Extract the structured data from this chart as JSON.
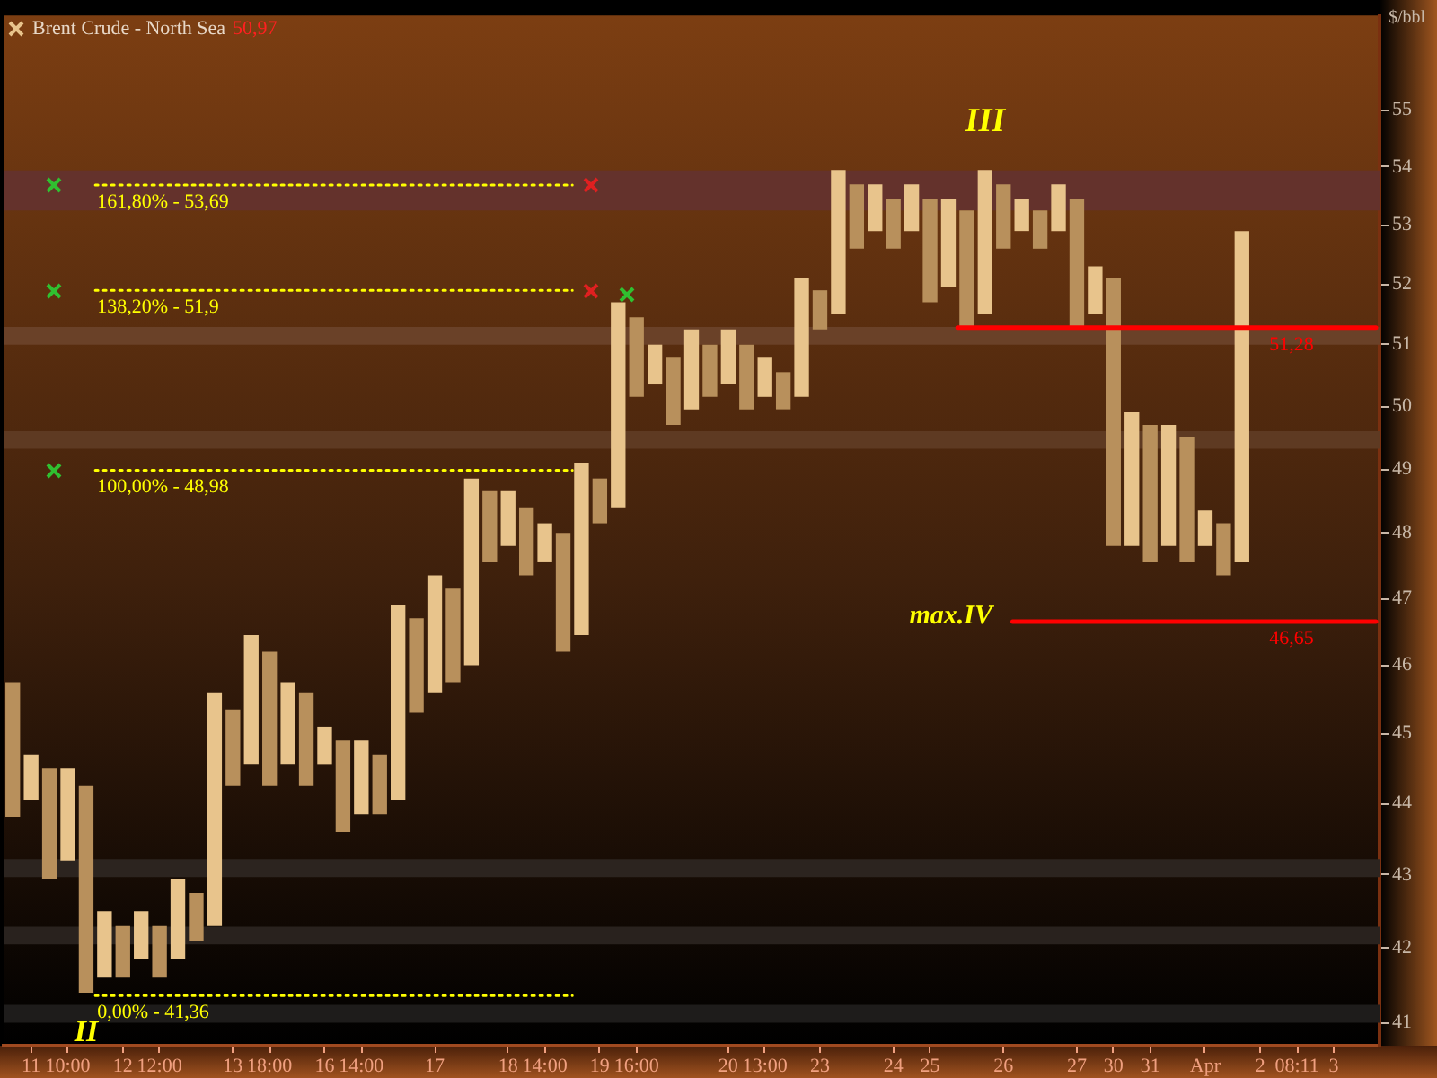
{
  "chart_data": {
    "type": "bar",
    "title": "Brent Crude - North Sea",
    "subtitle": "50,97",
    "ylabel": "$/bbl",
    "categories": [
      null,
      "11",
      null,
      "10:00",
      null,
      null,
      "12",
      null,
      "12:00",
      null,
      null,
      null,
      "13",
      null,
      "18:00",
      null,
      null,
      "16",
      null,
      "14:00",
      null,
      null,
      null,
      "17",
      null,
      null,
      null,
      "18",
      null,
      "14:00",
      null,
      null,
      "19",
      null,
      "16:00",
      null,
      null,
      null,
      null,
      "20",
      null,
      "13:00",
      null,
      null,
      "23",
      null,
      null,
      null,
      "24",
      null,
      "25",
      null,
      null,
      null,
      "26",
      null,
      null,
      null,
      "27",
      null,
      "30",
      null,
      "31",
      null,
      null,
      "Apr",
      null,
      null,
      "2",
      null,
      "08:11",
      null,
      "3",
      null,
      null
    ],
    "base": [
      43.8,
      44.05,
      42.95,
      43.2,
      41.4,
      41.6,
      41.6,
      41.85,
      41.6,
      41.85,
      42.1,
      42.3,
      44.25,
      44.55,
      44.25,
      44.55,
      44.25,
      44.55,
      43.6,
      43.85,
      43.85,
      44.05,
      45.3,
      45.6,
      45.75,
      46.0,
      47.55,
      47.8,
      47.35,
      47.55,
      46.2,
      46.45,
      48.15,
      48.4,
      50.15,
      50.35,
      49.7,
      49.95,
      50.15,
      50.35,
      49.95,
      50.15,
      49.95,
      50.15,
      51.25,
      51.5,
      52.6,
      52.9,
      52.6,
      52.9,
      51.7,
      51.95,
      51.3,
      51.5,
      52.6,
      52.9,
      52.6,
      52.9,
      51.3,
      51.5,
      47.8,
      47.8,
      47.55,
      47.8,
      47.55,
      47.8,
      47.35,
      47.55,
      null,
      null,
      null,
      null,
      null,
      null,
      null
    ],
    "values": [
      1.95,
      0.65,
      1.55,
      1.3,
      2.85,
      0.9,
      0.7,
      0.65,
      0.7,
      1.1,
      0.65,
      3.3,
      1.1,
      1.9,
      1.95,
      1.2,
      1.35,
      0.55,
      1.3,
      1.05,
      0.85,
      2.85,
      1.4,
      1.75,
      1.4,
      2.85,
      1.1,
      0.85,
      1.05,
      0.6,
      1.8,
      2.65,
      0.7,
      3.3,
      1.3,
      0.65,
      1.1,
      1.3,
      0.85,
      0.9,
      1.05,
      0.65,
      0.6,
      1.95,
      0.65,
      2.45,
      1.1,
      0.8,
      0.85,
      0.8,
      1.75,
      1.5,
      1.95,
      2.45,
      1.1,
      0.55,
      0.65,
      0.8,
      2.15,
      0.8,
      4.3,
      2.1,
      2.15,
      1.9,
      1.95,
      0.55,
      0.8,
      5.35,
      null,
      null,
      null,
      null,
      null,
      null,
      null
    ],
    "colors": [
      "#b8905c",
      "#e8c48c",
      "#b8905c",
      "#e8c48c",
      "#b8905c",
      "#e8c48c",
      "#b8905c",
      "#e8c48c",
      "#b8905c",
      "#e8c48c",
      "#b8905c",
      "#e8c48c",
      "#b8905c",
      "#e8c48c",
      "#b8905c",
      "#e8c48c",
      "#b8905c",
      "#e8c48c",
      "#b8905c",
      "#e8c48c",
      "#b8905c",
      "#e8c48c",
      "#b8905c",
      "#e8c48c",
      "#b8905c",
      "#e8c48c",
      "#b8905c",
      "#e8c48c",
      "#b8905c",
      "#e8c48c",
      "#b8905c",
      "#e8c48c",
      "#b8905c",
      "#e8c48c",
      "#b8905c",
      "#e8c48c",
      "#b8905c",
      "#e8c48c",
      "#b8905c",
      "#e8c48c",
      "#b8905c",
      "#e8c48c",
      "#b8905c",
      "#e8c48c",
      "#b8905c",
      "#e8c48c",
      "#b8905c",
      "#e8c48c",
      "#b8905c",
      "#e8c48c",
      "#b8905c",
      "#e8c48c",
      "#b8905c",
      "#e8c48c",
      "#b8905c",
      "#e8c48c",
      "#b8905c",
      "#e8c48c",
      "#b8905c",
      "#e8c48c",
      "#b8905c",
      "#e8c48c",
      "#b8905c",
      "#e8c48c",
      "#b8905c",
      "#e8c48c",
      "#b8905c",
      "#e8c48c",
      "#b8905c",
      "#e8c48c",
      "#b8905c",
      "#e8c48c",
      "#b8905c",
      "#e8c48c",
      "#b8905c"
    ],
    "log": true,
    "ylim": [
      40.7,
      56.7
    ],
    "yticks": [
      41,
      42,
      43,
      44,
      45,
      46,
      47,
      48,
      49,
      50,
      51,
      52,
      53,
      54,
      55
    ],
    "ref_lines": [
      {
        "axis": "y",
        "value": 53.69,
        "color": "#ffff00",
        "line_style": "dotted"
      },
      {
        "axis": "y",
        "value": 51.9,
        "color": "#ffff00",
        "line_style": "dotted"
      },
      {
        "axis": "y",
        "value": 48.98,
        "color": "#ffff00",
        "line_style": "dotted"
      },
      {
        "axis": "y",
        "value": 41.36,
        "color": "#ffff00",
        "line_style": "dotted"
      },
      {
        "axis": "y",
        "value": 51.28,
        "label": "51,28",
        "color": "#ff0000",
        "line_style": "solid"
      },
      {
        "axis": "y",
        "value": 46.65,
        "label": "46,65",
        "color": "#ff0000",
        "line_style": "solid"
      }
    ],
    "bands": [
      {
        "axis": "y",
        "from": 53.25,
        "to": 53.94,
        "color": "#64322c"
      },
      {
        "axis": "y",
        "from": 51.0,
        "to": 51.29,
        "color": "#6a4128"
      },
      {
        "axis": "y",
        "from": 49.32,
        "to": 49.6,
        "color": "#5e3a22"
      },
      {
        "axis": "y",
        "from": 42.97,
        "to": 43.22,
        "color": "#2c241f"
      },
      {
        "axis": "y",
        "from": 42.05,
        "to": 42.29,
        "color": "#29221e"
      },
      {
        "axis": "y",
        "from": 41.0,
        "to": 41.24,
        "color": "#1e1c1b"
      }
    ],
    "annotations": [
      "III",
      "II",
      "max.IV",
      "161,80% - 53,69",
      "138,20% - 51,9",
      "100,00% - 48,98",
      "0,00% - 41,36"
    ]
  }
}
